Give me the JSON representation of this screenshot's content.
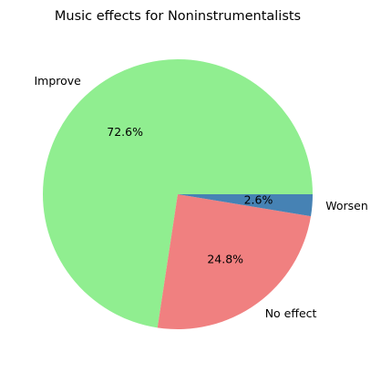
{
  "chart_data": {
    "type": "pie",
    "title": "Music effects for Noninstrumentalists",
    "slices": [
      {
        "label": "Improve",
        "value": 72.6,
        "pct_label": "72.6%",
        "color": "#90ee90"
      },
      {
        "label": "No effect",
        "value": 24.8,
        "pct_label": "24.8%",
        "color": "#f08080"
      },
      {
        "label": "Worsen",
        "value": 2.6,
        "pct_label": "2.6%",
        "color": "#4682b4"
      }
    ],
    "start_angle_deg": 0,
    "direction": "counterclockwise"
  }
}
